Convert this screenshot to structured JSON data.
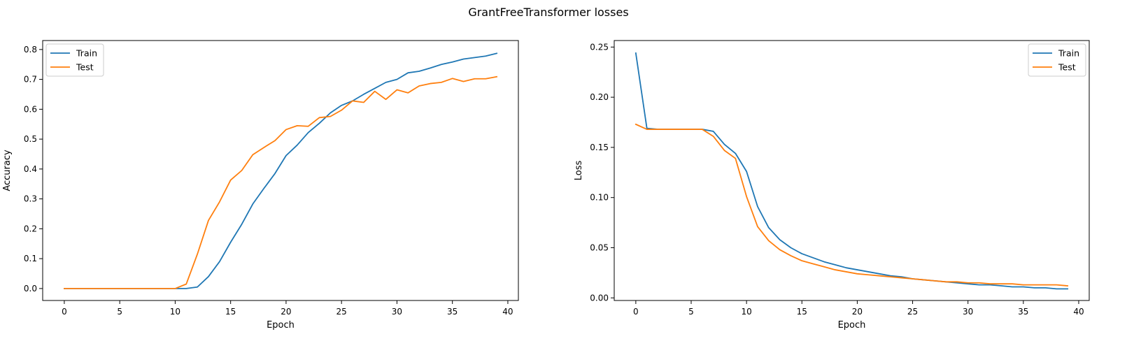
{
  "figure": {
    "title": "GrantFreeTransformer losses"
  },
  "colors": {
    "train": "#1f77b4",
    "test": "#ff7f0e"
  },
  "chart_data": [
    {
      "type": "line",
      "xlabel": "Epoch",
      "ylabel": "Accuracy",
      "xlim": [
        -1.95,
        40.95
      ],
      "ylim": [
        -0.04,
        0.83
      ],
      "xticks": [
        0,
        5,
        10,
        15,
        20,
        25,
        30,
        35,
        40
      ],
      "xtick_labels": [
        "0",
        "5",
        "10",
        "15",
        "20",
        "25",
        "30",
        "35",
        "40"
      ],
      "yticks": [
        0.0,
        0.1,
        0.2,
        0.3,
        0.4,
        0.5,
        0.6,
        0.7,
        0.8
      ],
      "ytick_labels": [
        "0.0",
        "0.1",
        "0.2",
        "0.3",
        "0.4",
        "0.5",
        "0.6",
        "0.7",
        "0.8"
      ],
      "grid": false,
      "legend_position": "upper-left",
      "x": [
        0,
        1,
        2,
        3,
        4,
        5,
        6,
        7,
        8,
        9,
        10,
        11,
        12,
        13,
        14,
        15,
        16,
        17,
        18,
        19,
        20,
        21,
        22,
        23,
        24,
        25,
        26,
        27,
        28,
        29,
        30,
        31,
        32,
        33,
        34,
        35,
        36,
        37,
        38,
        39
      ],
      "series": [
        {
          "name": "Train",
          "color": "#1f77b4",
          "values": [
            0,
            0,
            0,
            0,
            0,
            0,
            0,
            0,
            0,
            0,
            0,
            0,
            0.005,
            0.04,
            0.09,
            0.155,
            0.215,
            0.283,
            0.335,
            0.385,
            0.445,
            0.48,
            0.522,
            0.553,
            0.588,
            0.613,
            0.628,
            0.65,
            0.67,
            0.69,
            0.7,
            0.722,
            0.727,
            0.738,
            0.75,
            0.758,
            0.768,
            0.773,
            0.778,
            0.787
          ]
        },
        {
          "name": "Test",
          "color": "#ff7f0e",
          "values": [
            0,
            0,
            0,
            0,
            0,
            0,
            0,
            0,
            0,
            0,
            0,
            0.015,
            0.115,
            0.228,
            0.29,
            0.363,
            0.395,
            0.448,
            0.472,
            0.495,
            0.532,
            0.545,
            0.543,
            0.572,
            0.576,
            0.597,
            0.628,
            0.623,
            0.66,
            0.633,
            0.665,
            0.655,
            0.678,
            0.686,
            0.69,
            0.703,
            0.693,
            0.702,
            0.702,
            0.709
          ]
        }
      ]
    },
    {
      "type": "line",
      "xlabel": "Epoch",
      "ylabel": "Loss",
      "xlim": [
        -1.95,
        40.95
      ],
      "ylim": [
        -0.0026,
        0.2565
      ],
      "xticks": [
        0,
        5,
        10,
        15,
        20,
        25,
        30,
        35,
        40
      ],
      "xtick_labels": [
        "0",
        "5",
        "10",
        "15",
        "20",
        "25",
        "30",
        "35",
        "40"
      ],
      "yticks": [
        0.0,
        0.05,
        0.1,
        0.15,
        0.2,
        0.25
      ],
      "ytick_labels": [
        "0.00",
        "0.05",
        "0.10",
        "0.15",
        "0.20",
        "0.25"
      ],
      "grid": false,
      "legend_position": "upper-right",
      "x": [
        0,
        1,
        2,
        3,
        4,
        5,
        6,
        7,
        8,
        9,
        10,
        11,
        12,
        13,
        14,
        15,
        16,
        17,
        18,
        19,
        20,
        21,
        22,
        23,
        24,
        25,
        26,
        27,
        28,
        29,
        30,
        31,
        32,
        33,
        34,
        35,
        36,
        37,
        38,
        39
      ],
      "series": [
        {
          "name": "Train",
          "color": "#1f77b4",
          "values": [
            0.244,
            0.169,
            0.168,
            0.168,
            0.168,
            0.168,
            0.168,
            0.166,
            0.153,
            0.144,
            0.126,
            0.091,
            0.07,
            0.058,
            0.05,
            0.044,
            0.04,
            0.036,
            0.033,
            0.03,
            0.028,
            0.026,
            0.024,
            0.022,
            0.021,
            0.019,
            0.018,
            0.017,
            0.016,
            0.015,
            0.014,
            0.013,
            0.013,
            0.012,
            0.011,
            0.011,
            0.01,
            0.01,
            0.009,
            0.009
          ]
        },
        {
          "name": "Test",
          "color": "#ff7f0e",
          "values": [
            0.173,
            0.168,
            0.168,
            0.168,
            0.168,
            0.168,
            0.168,
            0.161,
            0.147,
            0.139,
            0.101,
            0.071,
            0.057,
            0.048,
            0.042,
            0.037,
            0.034,
            0.031,
            0.028,
            0.026,
            0.024,
            0.023,
            0.022,
            0.021,
            0.02,
            0.019,
            0.018,
            0.017,
            0.016,
            0.016,
            0.015,
            0.015,
            0.014,
            0.014,
            0.014,
            0.013,
            0.013,
            0.013,
            0.013,
            0.012
          ]
        }
      ]
    }
  ]
}
